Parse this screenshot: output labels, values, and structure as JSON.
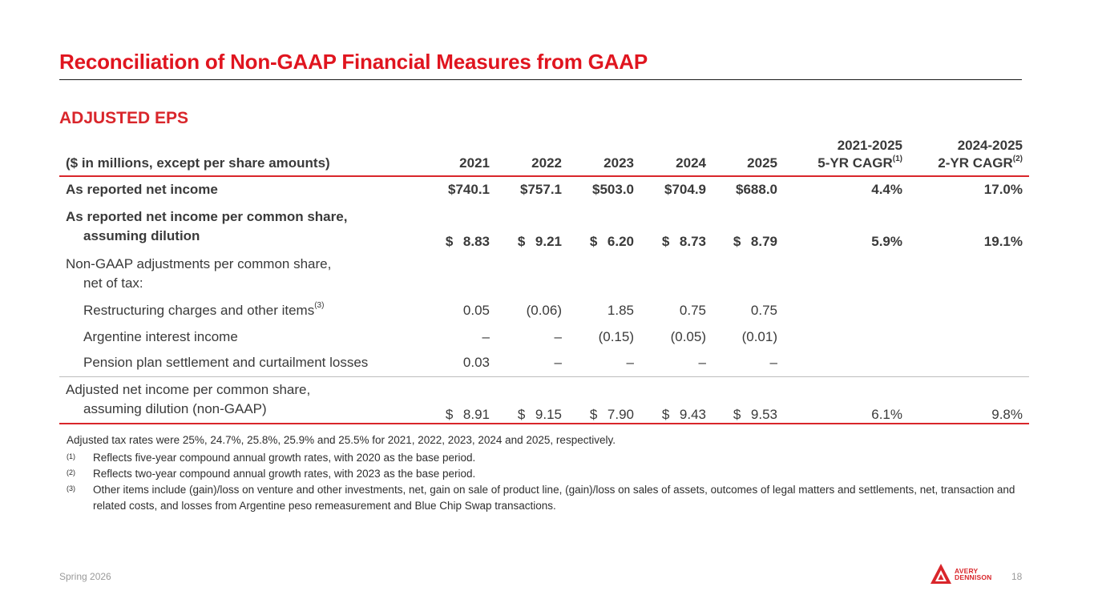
{
  "page": {
    "title": "Reconciliation of Non-GAAP Financial Measures from GAAP",
    "section_title": "ADJUSTED EPS",
    "footer_left": "Spring 2026",
    "page_number": "18",
    "logo_line1": "AVERY",
    "logo_line2": "DENNISON",
    "accent_color": "#e0151f"
  },
  "table": {
    "header": {
      "label": "($ in millions, except per share amounts)",
      "years": [
        "2021",
        "2022",
        "2023",
        "2024",
        "2025"
      ],
      "cagr5_line1": "2021-2025",
      "cagr5_line2": "5-YR CAGR",
      "cagr5_note": "(1)",
      "cagr2_line1": "2024-2025",
      "cagr2_line2": "2-YR CAGR",
      "cagr2_note": "(2)"
    },
    "net_income": {
      "label": "As reported net income",
      "values": [
        "$740.1",
        "$757.1",
        "$503.0",
        "$704.9",
        "$688.0"
      ],
      "cagr5": "4.4%",
      "cagr2": "17.0%"
    },
    "eps_reported": {
      "label_line1": "As reported net income per common share,",
      "label_line2": "assuming dilution",
      "dollar": "$",
      "values": [
        "8.83",
        "9.21",
        "6.20",
        "8.73",
        "8.79"
      ],
      "cagr5": "5.9%",
      "cagr2": "19.1%"
    },
    "adjustments_header": {
      "label_line1": "Non-GAAP adjustments per common share,",
      "label_line2": "net of tax:"
    },
    "restructuring": {
      "label": "Restructuring charges and other items",
      "note": "(3)",
      "values": [
        "0.05",
        "(0.06)",
        "1.85",
        "0.75",
        "0.75"
      ]
    },
    "argentine": {
      "label": "Argentine interest income",
      "values": [
        "–",
        "–",
        "(0.15)",
        "(0.05)",
        "(0.01)"
      ]
    },
    "pension": {
      "label": "Pension plan settlement and curtailment losses",
      "values": [
        "0.03",
        "–",
        "–",
        "–",
        "–"
      ]
    },
    "eps_adjusted": {
      "label_line1": "Adjusted net income per common share,",
      "label_line2": "assuming dilution (non-GAAP)",
      "dollar": "$",
      "values": [
        "8.91",
        "9.15",
        "7.90",
        "9.43",
        "9.53"
      ],
      "cagr5": "6.1%",
      "cagr2": "9.8%"
    }
  },
  "notes": {
    "tax_rates": "Adjusted tax rates were 25%, 24.7%, 25.8%, 25.9% and 25.5% for 2021, 2022, 2023, 2024 and 2025, respectively.",
    "items": [
      {
        "marker": "(1)",
        "text": "Reflects five-year compound annual growth rates, with 2020 as the base period."
      },
      {
        "marker": "(2)",
        "text": "Reflects two-year compound annual growth rates, with 2023 as the base period."
      },
      {
        "marker": "(3)",
        "text": "Other items include (gain)/loss on venture and other investments, net, gain on sale of product line, (gain)/loss on sales of assets, outcomes of legal matters and settlements, net, transaction and related costs, and losses from Argentine peso remeasurement and Blue Chip Swap transactions."
      }
    ]
  }
}
